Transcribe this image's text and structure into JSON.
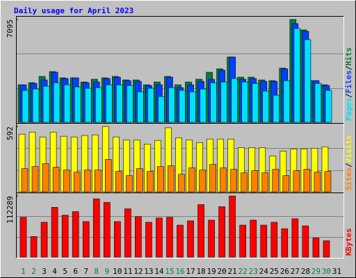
{
  "chart_data": {
    "type": "bar",
    "title": "Daily usage for April 2023",
    "categories": [
      "1",
      "2",
      "3",
      "4",
      "5",
      "6",
      "7",
      "8",
      "9",
      "10",
      "11",
      "12",
      "13",
      "14",
      "15",
      "16",
      "17",
      "18",
      "19",
      "20",
      "21",
      "22",
      "23",
      "24",
      "25",
      "26",
      "27",
      "28",
      "29",
      "30",
      "31"
    ],
    "category_colors": [
      "#008040",
      "#008040",
      "#000000",
      "#000000",
      "#000000",
      "#000000",
      "#000000",
      "#008040",
      "#008040",
      "#000000",
      "#000000",
      "#000000",
      "#000000",
      "#000000",
      "#008040",
      "#008040",
      "#000000",
      "#000000",
      "#000000",
      "#000000",
      "#000000",
      "#008040",
      "#008040",
      "#000000",
      "#000000",
      "#000000",
      "#000000",
      "#000000",
      "#008040",
      "#008040",
      "#000000"
    ],
    "legend_separator": "/",
    "panels": [
      {
        "ylim": [
          0,
          7095
        ],
        "yticks": [
          7095
        ],
        "series": [
          {
            "name": "Hits",
            "color": "#008040",
            "values": [
              2589,
              2733,
              3164,
              3500,
              3068,
              3068,
              2781,
              2972,
              3068,
              3164,
              2924,
              2924,
              2589,
              2781,
              3164,
              2589,
              2781,
              2972,
              3452,
              3691,
              4506,
              3116,
              3116,
              2924,
              2876,
              3739,
              7095,
              6376,
              2876,
              2589,
              0
            ]
          },
          {
            "name": "Files",
            "color": "#0040ff",
            "values": [
              2589,
              2685,
              2924,
              3452,
              3020,
              3068,
              2733,
              2781,
              3020,
              3116,
              2876,
              2829,
              2541,
              2589,
              3116,
              2397,
              2589,
              2829,
              2972,
              3595,
              4506,
              2972,
              3020,
              2829,
              2829,
              3691,
              6807,
              6280,
              2876,
              2541,
              0
            ]
          },
          {
            "name": "Pages",
            "color": "#00e0ff",
            "values": [
              2205,
              2301,
              2493,
              2733,
              2589,
              2445,
              2349,
              2397,
              2589,
              2589,
              2541,
              2109,
              2349,
              1774,
              2397,
              2205,
              2109,
              2301,
              2733,
              2781,
              3020,
              2781,
              2685,
              2157,
              1870,
              2876,
              6472,
              5705,
              2685,
              2205,
              0
            ]
          }
        ]
      },
      {
        "ylim": [
          0,
          592
        ],
        "yticks": [
          592
        ],
        "series": [
          {
            "name": "Visits",
            "color": "#ffff00",
            "values": [
              522,
              541,
              497,
              541,
              503,
              497,
              510,
              516,
              592,
              497,
              471,
              471,
              433,
              465,
              580,
              490,
              471,
              446,
              478,
              478,
              478,
              401,
              401,
              401,
              325,
              369,
              389,
              389,
              395,
              408,
              0
            ]
          },
          {
            "name": "Sites",
            "color": "#ff8000",
            "values": [
              210,
              229,
              255,
              223,
              197,
              178,
              197,
              197,
              293,
              185,
              147,
              210,
              185,
              229,
              236,
              159,
              217,
              197,
              248,
              217,
              204,
              172,
              191,
              172,
              204,
              147,
              191,
              204,
              178,
              185,
              0
            ]
          }
        ]
      },
      {
        "ylim": [
          0,
          112289
        ],
        "yticks": [
          112289
        ],
        "series": [
          {
            "name": "KBytes",
            "color": "#ff0000",
            "values": [
              73119,
              37865,
              63979,
              91399,
              77036,
              83565,
              65285,
              107067,
              100539,
              65285,
              88788,
              74425,
              63979,
              71814,
              73119,
              58757,
              66591,
              96622,
              67896,
              92705,
              112289,
              58757,
              67896,
              58757,
              63979,
              52228,
              70508,
              57451,
              35254,
              30031,
              0
            ]
          }
        ]
      }
    ]
  }
}
